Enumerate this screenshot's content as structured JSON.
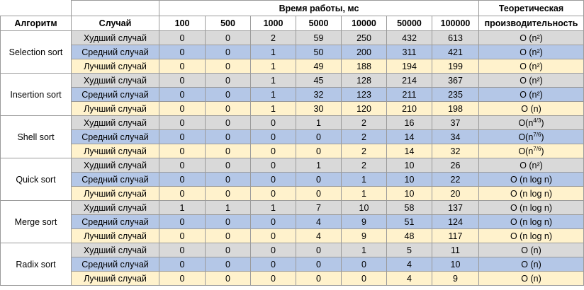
{
  "header": {
    "algorithm": "Алгоритм",
    "case": "Случай",
    "runtime": "Время работы, мс",
    "theory_line1": "Теоретическая",
    "theory_line2": "производительность",
    "sizes": [
      "100",
      "500",
      "1000",
      "5000",
      "10000",
      "50000",
      "100000"
    ]
  },
  "algorithms": [
    {
      "name": "Selection sort",
      "rows": [
        {
          "case": "Худший случай",
          "type": "worst",
          "values": [
            "0",
            "0",
            "2",
            "59",
            "250",
            "432",
            "613"
          ],
          "theory": "O (n²)"
        },
        {
          "case": "Средний случай",
          "type": "avg",
          "values": [
            "0",
            "0",
            "1",
            "50",
            "200",
            "311",
            "421"
          ],
          "theory": "O (n²)"
        },
        {
          "case": "Лучший случай",
          "type": "best",
          "values": [
            "0",
            "0",
            "1",
            "49",
            "188",
            "194",
            "199"
          ],
          "theory": "O (n²)"
        }
      ]
    },
    {
      "name": "Insertion sort",
      "rows": [
        {
          "case": "Худший случай",
          "type": "worst",
          "values": [
            "0",
            "0",
            "1",
            "45",
            "128",
            "214",
            "367"
          ],
          "theory": "O (n²)"
        },
        {
          "case": "Средний случай",
          "type": "avg",
          "values": [
            "0",
            "0",
            "1",
            "32",
            "123",
            "211",
            "235"
          ],
          "theory": "O (n²)"
        },
        {
          "case": "Лучший случай",
          "type": "best",
          "values": [
            "0",
            "0",
            "1",
            "30",
            "120",
            "210",
            "198"
          ],
          "theory": "O (n)"
        }
      ]
    },
    {
      "name": "Shell sort",
      "rows": [
        {
          "case": "Худший случай",
          "type": "worst",
          "values": [
            "0",
            "0",
            "0",
            "1",
            "2",
            "16",
            "37"
          ],
          "theory_base": "O(n",
          "theory_sup": "4/3",
          "theory_end": ")"
        },
        {
          "case": "Средний случай",
          "type": "avg",
          "values": [
            "0",
            "0",
            "0",
            "0",
            "2",
            "14",
            "34"
          ],
          "theory_base": "O(n",
          "theory_sup": "7/6",
          "theory_end": ")"
        },
        {
          "case": "Лучший случай",
          "type": "best",
          "values": [
            "0",
            "0",
            "0",
            "0",
            "2",
            "14",
            "32"
          ],
          "theory_base": "O(n",
          "theory_sup": "7/6",
          "theory_end": ")"
        }
      ]
    },
    {
      "name": "Quick sort",
      "rows": [
        {
          "case": "Худший случай",
          "type": "worst",
          "values": [
            "0",
            "0",
            "0",
            "1",
            "2",
            "10",
            "26"
          ],
          "theory": "O (n²)"
        },
        {
          "case": "Средний случай",
          "type": "avg",
          "values": [
            "0",
            "0",
            "0",
            "0",
            "1",
            "10",
            "22"
          ],
          "theory": "O (n log n)"
        },
        {
          "case": "Лучший случай",
          "type": "best",
          "values": [
            "0",
            "0",
            "0",
            "0",
            "1",
            "10",
            "20"
          ],
          "theory": "O (n log n)"
        }
      ]
    },
    {
      "name": "Merge sort",
      "rows": [
        {
          "case": "Худший случай",
          "type": "worst",
          "values": [
            "1",
            "1",
            "1",
            "7",
            "10",
            "58",
            "137"
          ],
          "theory": "O (n log n)"
        },
        {
          "case": "Средний случай",
          "type": "avg",
          "values": [
            "0",
            "0",
            "0",
            "4",
            "9",
            "51",
            "124"
          ],
          "theory": "O (n log n)"
        },
        {
          "case": "Лучший случай",
          "type": "best",
          "values": [
            "0",
            "0",
            "0",
            "4",
            "9",
            "48",
            "117"
          ],
          "theory": "O (n log n)"
        }
      ]
    },
    {
      "name": "Radix sort",
      "rows": [
        {
          "case": "Худший случай",
          "type": "worst",
          "values": [
            "0",
            "0",
            "0",
            "0",
            "1",
            "5",
            "11"
          ],
          "theory": "O (n)"
        },
        {
          "case": "Средний случай",
          "type": "avg",
          "values": [
            "0",
            "0",
            "0",
            "0",
            "0",
            "4",
            "10"
          ],
          "theory": "O (n)"
        },
        {
          "case": "Лучший случай",
          "type": "best",
          "values": [
            "0",
            "0",
            "0",
            "0",
            "0",
            "4",
            "9"
          ],
          "theory": "O (n)"
        }
      ]
    }
  ],
  "colors": {
    "worst": "#d9d9d9",
    "avg": "#b4c7e7",
    "best": "#fff2cc",
    "grid": "#9a9a9a"
  }
}
